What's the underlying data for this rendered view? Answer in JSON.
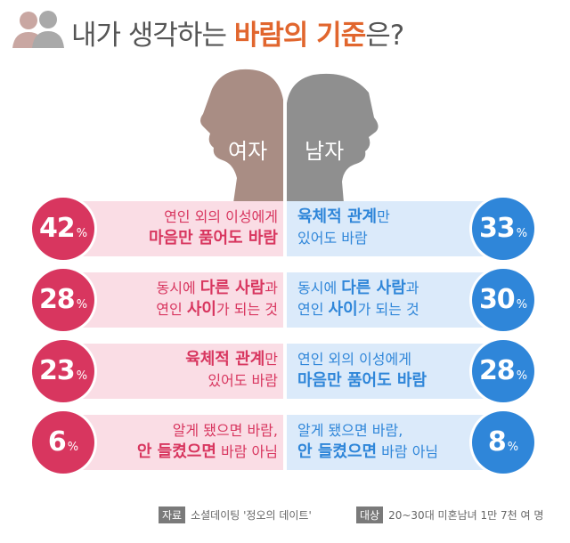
{
  "header": {
    "title_prefix": "내가 생각하는 ",
    "title_highlight": "바람의 기준",
    "title_suffix": "은?"
  },
  "chart_data": {
    "type": "bar",
    "title": "내가 생각하는 바람의 기준은?",
    "unit": "%",
    "series": [
      {
        "name": "여자",
        "color": "#d8365f",
        "items": [
          {
            "value": 42,
            "line1": "연인 외의 이성에게",
            "line2": "마음만 품어도 바람"
          },
          {
            "value": 28,
            "line1": "동시에 다른 사람과",
            "line2": "연인 사이가 되는 것"
          },
          {
            "value": 23,
            "line1": "육체적 관계만",
            "line2": "있어도 바람"
          },
          {
            "value": 6,
            "line1": "알게 됐으면 바람,",
            "line2": "안 들켰으면 바람 아님"
          }
        ]
      },
      {
        "name": "남자",
        "color": "#2f86d9",
        "items": [
          {
            "value": 33,
            "line1": "육체적 관계만",
            "line2": "있어도 바람"
          },
          {
            "value": 30,
            "line1": "동시에 다른 사람과",
            "line2": "연인 사이가 되는 것"
          },
          {
            "value": 28,
            "line1": "연인 외의 이성에게",
            "line2": "마음만 품어도 바람"
          },
          {
            "value": 8,
            "line1": "알게 됐으면 바람,",
            "line2": "안 들켰으면 바람 아님"
          }
        ]
      }
    ]
  },
  "footer": {
    "source_tag": "자료",
    "source_text": "소셜데이팅 '정오의 데이트'",
    "target_tag": "대상",
    "target_text": "20~30대 미혼남녀 1만 7천 여 명"
  }
}
